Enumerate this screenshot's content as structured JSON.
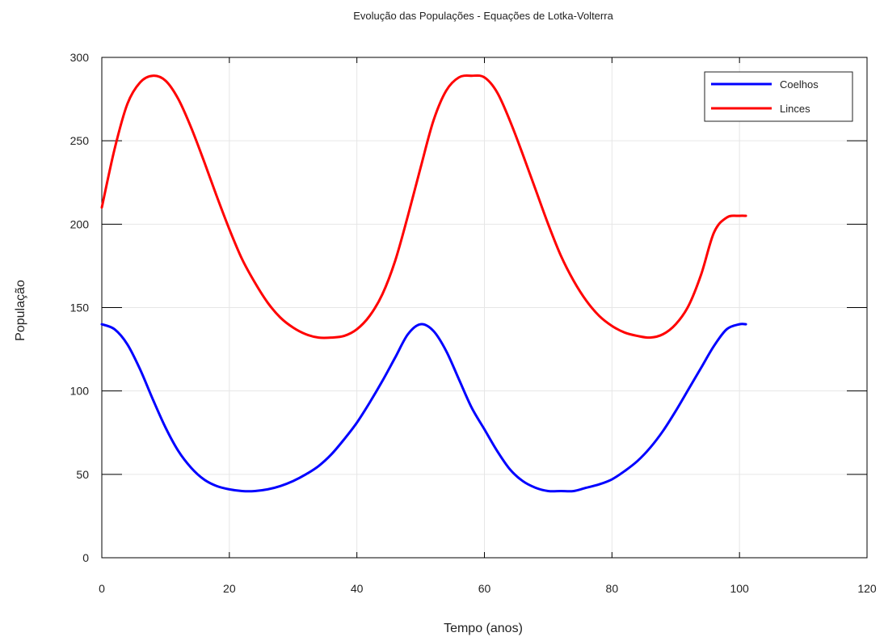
{
  "chart_data": {
    "type": "line",
    "title": "Evolução das Populações - Equações de Lotka-Volterra",
    "xlabel": "Tempo (anos)",
    "ylabel": "População",
    "xlim": [
      0,
      120
    ],
    "ylim": [
      0,
      300
    ],
    "xticks": [
      "0",
      "20",
      "40",
      "60",
      "80",
      "100",
      "120"
    ],
    "yticks": [
      "0",
      "50",
      "100",
      "150",
      "200",
      "250",
      "300"
    ],
    "grid": true,
    "legend_position": "top-right",
    "series": [
      {
        "name": "Coelhos",
        "color": "#0000ff",
        "x": [
          0,
          2,
          4,
          6,
          8,
          10,
          12,
          14,
          16,
          18,
          20,
          22,
          24,
          26,
          28,
          30,
          32,
          34,
          36,
          38,
          40,
          42,
          44,
          46,
          48,
          50,
          52,
          54,
          56,
          58,
          60,
          62,
          64,
          66,
          68,
          70,
          72,
          74,
          76,
          78,
          80,
          82,
          84,
          86,
          88,
          90,
          92,
          94,
          96,
          98,
          100,
          101
        ],
        "y": [
          140,
          137,
          128,
          113,
          95,
          78,
          64,
          54,
          47,
          43,
          41,
          40,
          40,
          41,
          43,
          46,
          50,
          55,
          62,
          71,
          81,
          93,
          106,
          120,
          134,
          140,
          136,
          124,
          107,
          90,
          77,
          64,
          53,
          46,
          42,
          40,
          40,
          40,
          42,
          44,
          47,
          52,
          58,
          66,
          76,
          88,
          101,
          114,
          127,
          137,
          140,
          140
        ]
      },
      {
        "name": "Linces",
        "color": "#ff0000",
        "x": [
          0,
          2,
          4,
          6,
          8,
          10,
          12,
          14,
          16,
          18,
          20,
          22,
          24,
          26,
          28,
          30,
          32,
          34,
          36,
          38,
          40,
          42,
          44,
          46,
          48,
          50,
          52,
          54,
          56,
          58,
          60,
          62,
          64,
          66,
          68,
          70,
          72,
          74,
          76,
          78,
          80,
          82,
          84,
          86,
          88,
          90,
          92,
          94,
          96,
          98,
          100,
          101
        ],
        "y": [
          210,
          245,
          272,
          285,
          289,
          286,
          275,
          258,
          238,
          217,
          197,
          179,
          165,
          153,
          144,
          138,
          134,
          132,
          132,
          133,
          137,
          145,
          158,
          178,
          205,
          234,
          262,
          280,
          288,
          289,
          288,
          279,
          262,
          242,
          221,
          200,
          181,
          166,
          154,
          145,
          139,
          135,
          133,
          132,
          134,
          140,
          151,
          170,
          195,
          204,
          205,
          205
        ]
      }
    ]
  }
}
